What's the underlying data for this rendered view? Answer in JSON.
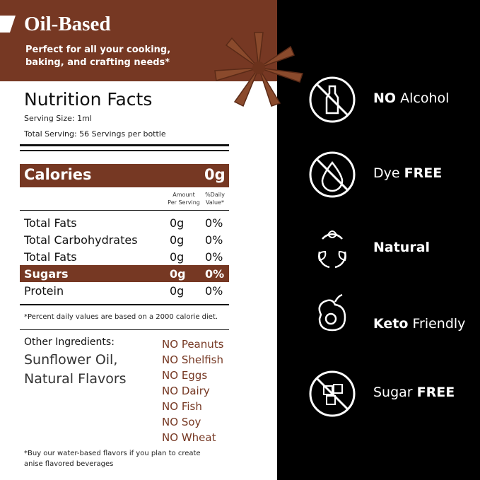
{
  "header": {
    "title": "Oil-Based",
    "subtitle_lines": [
      "Perfect for all your cooking,",
      "baking, and crafting needs*"
    ]
  },
  "nutrition": {
    "title": "Nutrition Facts",
    "serving_size": "Serving Size: 1ml",
    "total_serving": "Total Serving: 56 Servings per bottle",
    "calories_label": "Calories",
    "calories_value": "0g",
    "amount_header": [
      "Amount",
      "Per Serving"
    ],
    "daily_header": [
      "%Daily",
      "Value*"
    ],
    "rows": [
      {
        "name": "Total Fats",
        "amount": "0g",
        "daily": "0%",
        "highlight": false
      },
      {
        "name": "Total Carbohydrates",
        "amount": "0g",
        "daily": "0%",
        "highlight": false
      },
      {
        "name": "Total Fats",
        "amount": "0g",
        "daily": "0%",
        "highlight": false
      },
      {
        "name": "Sugars",
        "amount": "0g",
        "daily": "0%",
        "highlight": true
      },
      {
        "name": "Protein",
        "amount": "0g",
        "daily": "0%",
        "highlight": false
      }
    ],
    "footnote": "*Percent daily values are based on a 2000 calorie diet."
  },
  "ingredients": {
    "label": "Other Ingredients:",
    "lines": [
      "Sunflower Oil,",
      "Natural Flavors"
    ],
    "free_from": [
      {
        "prefix": "NO",
        "item": "Peanuts"
      },
      {
        "prefix": "NO",
        "item": "Shelfish"
      },
      {
        "prefix": "NO",
        "item": "Eggs"
      },
      {
        "prefix": "NO",
        "item": "Dairy"
      },
      {
        "prefix": "NO",
        "item": "Fish"
      },
      {
        "prefix": "NO",
        "item": "Soy"
      },
      {
        "prefix": "NO",
        "item": "Wheat"
      }
    ]
  },
  "note_lines": [
    "*Buy our water-based flavors if you plan to create",
    "anise flavored beverages"
  ],
  "badges": [
    {
      "parts": [
        {
          "text": "NO",
          "bold": true
        },
        {
          "text": "Alcohol",
          "bold": false
        }
      ]
    },
    {
      "parts": [
        {
          "text": "Dye",
          "bold": false
        },
        {
          "text": "FREE",
          "bold": true
        }
      ]
    },
    {
      "parts": [
        {
          "text": "Natural",
          "bold": true
        }
      ]
    },
    {
      "parts": [
        {
          "text": "Keto",
          "bold": true
        },
        {
          "text": "Friendly",
          "bold": false
        }
      ]
    },
    {
      "parts": [
        {
          "text": "Sugar",
          "bold": false
        },
        {
          "text": "FREE",
          "bold": true
        }
      ]
    }
  ]
}
